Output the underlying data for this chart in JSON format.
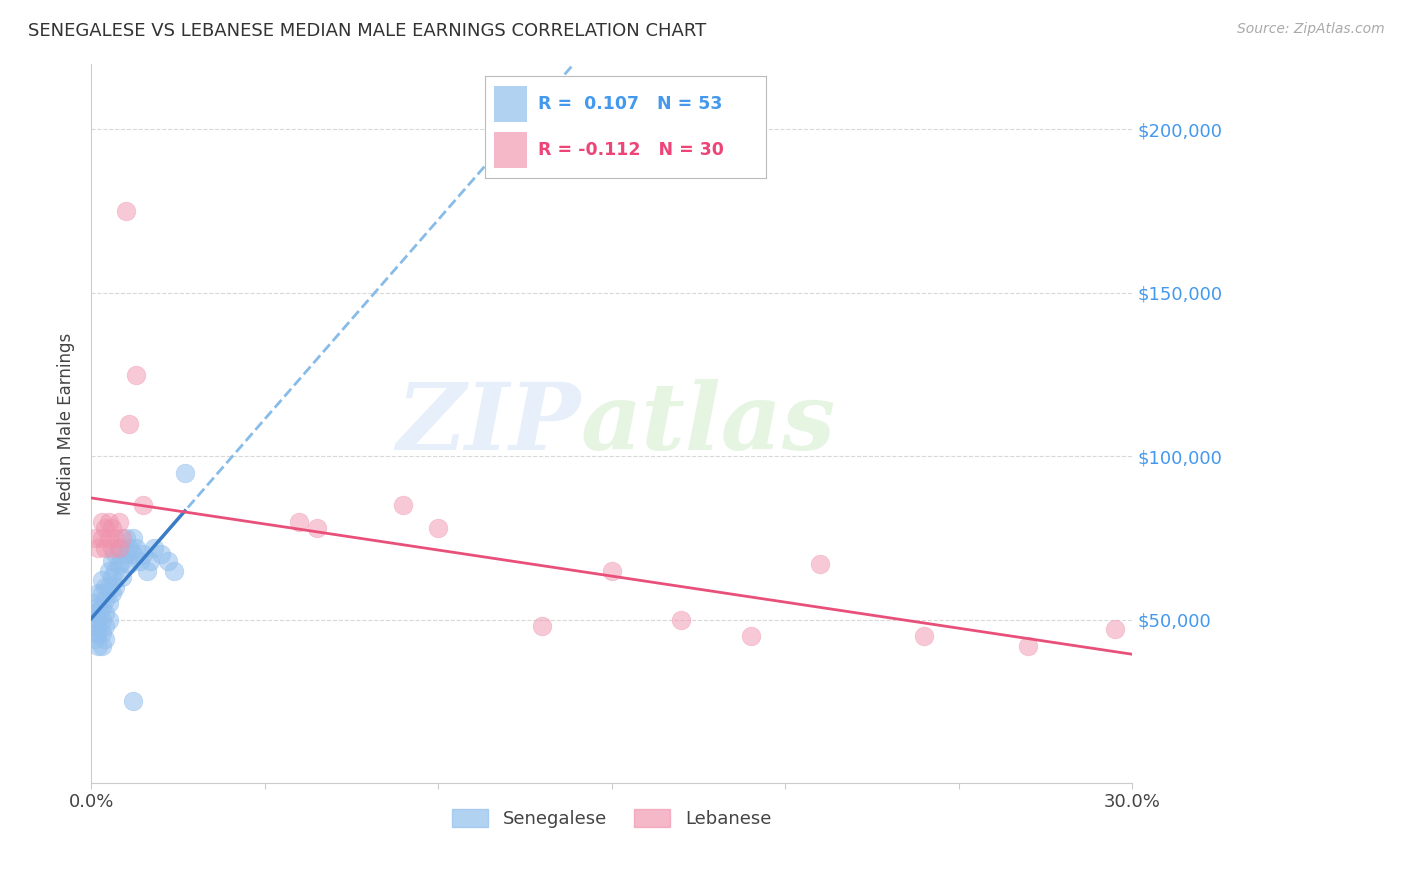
{
  "title": "SENEGALESE VS LEBANESE MEDIAN MALE EARNINGS CORRELATION CHART",
  "source": "Source: ZipAtlas.com",
  "ylabel": "Median Male Earnings",
  "xlim": [
    0.0,
    0.3
  ],
  "ylim": [
    0,
    220000
  ],
  "yticks": [
    0,
    50000,
    100000,
    150000,
    200000
  ],
  "ytick_labels": [
    "",
    "$50,000",
    "$100,000",
    "$150,000",
    "$200,000"
  ],
  "xticks": [
    0.0,
    0.05,
    0.1,
    0.15,
    0.2,
    0.25,
    0.3
  ],
  "xtick_labels": [
    "0.0%",
    "",
    "",
    "",
    "",
    "",
    "30.0%"
  ],
  "background_color": "#ffffff",
  "grid_color": "#d8d8d8",
  "blue_color": "#92bfed",
  "pink_color": "#f093ad",
  "blue_line_color": "#3a7cc7",
  "pink_line_color": "#e8507a",
  "blue_dash_color": "#88bce8",
  "legend_text_blue": "#4499ee",
  "legend_text_pink": "#ee4477",
  "senegalese_x": [
    0.0005,
    0.001,
    0.001,
    0.001,
    0.0015,
    0.0015,
    0.002,
    0.002,
    0.002,
    0.002,
    0.002,
    0.003,
    0.003,
    0.003,
    0.003,
    0.003,
    0.003,
    0.004,
    0.004,
    0.004,
    0.004,
    0.004,
    0.005,
    0.005,
    0.005,
    0.005,
    0.006,
    0.006,
    0.006,
    0.007,
    0.007,
    0.007,
    0.008,
    0.008,
    0.009,
    0.009,
    0.01,
    0.01,
    0.011,
    0.011,
    0.012,
    0.012,
    0.013,
    0.014,
    0.015,
    0.016,
    0.017,
    0.018,
    0.02,
    0.022,
    0.024,
    0.027,
    0.012
  ],
  "senegalese_y": [
    55000,
    52000,
    48000,
    44000,
    50000,
    46000,
    58000,
    54000,
    50000,
    46000,
    42000,
    62000,
    58000,
    54000,
    50000,
    46000,
    42000,
    60000,
    56000,
    52000,
    48000,
    44000,
    65000,
    60000,
    55000,
    50000,
    68000,
    63000,
    58000,
    70000,
    65000,
    60000,
    72000,
    67000,
    68000,
    63000,
    75000,
    70000,
    72000,
    67000,
    75000,
    70000,
    72000,
    68000,
    70000,
    65000,
    68000,
    72000,
    70000,
    68000,
    65000,
    95000,
    25000
  ],
  "lebanese_x": [
    0.001,
    0.002,
    0.003,
    0.003,
    0.004,
    0.004,
    0.005,
    0.005,
    0.006,
    0.006,
    0.007,
    0.008,
    0.008,
    0.009,
    0.01,
    0.011,
    0.013,
    0.015,
    0.06,
    0.065,
    0.09,
    0.1,
    0.13,
    0.15,
    0.17,
    0.19,
    0.21,
    0.24,
    0.27,
    0.295
  ],
  "lebanese_y": [
    75000,
    72000,
    80000,
    75000,
    78000,
    72000,
    80000,
    75000,
    78000,
    72000,
    75000,
    80000,
    72000,
    75000,
    175000,
    110000,
    125000,
    85000,
    80000,
    78000,
    85000,
    78000,
    48000,
    65000,
    50000,
    45000,
    67000,
    45000,
    42000,
    47000
  ],
  "sene_R": 0.107,
  "sene_N": 53,
  "leba_R": -0.112,
  "leba_N": 30
}
